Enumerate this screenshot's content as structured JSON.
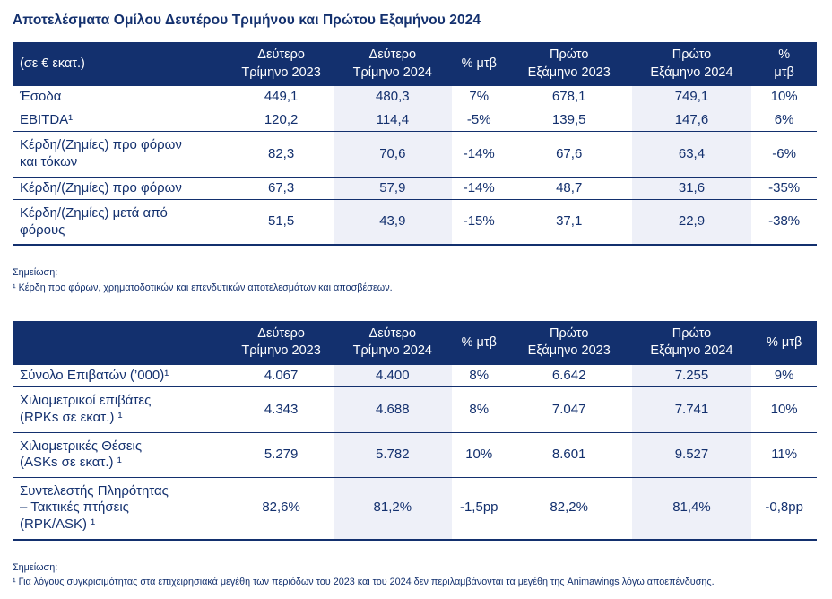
{
  "page": {
    "title": "Αποτελέσματα Ομίλου Δευτέρου Τριμήνου και Πρώτου Εξαμήνου 2024"
  },
  "colors": {
    "header_bg": "#13306E",
    "header_text": "#FFFFFF",
    "body_text": "#13306E",
    "column_highlight": "#EEF0F8",
    "row_line": "#13306E"
  },
  "tables": [
    {
      "name": "financial-results",
      "headers": [
        "(σε € εκατ.)",
        "Δεύτερο\nΤρίμηνο 2023",
        "Δεύτερο\nΤρίμηνο 2024",
        "% μτβ",
        "Πρώτο\nΕξάμηνο 2023",
        "Πρώτο\nΕξάμηνο 2024",
        "%\nμτβ"
      ],
      "rows": [
        {
          "label": "Έσοδα",
          "values": [
            "449,1",
            "480,3",
            "7%",
            "678,1",
            "749,1",
            "10%"
          ]
        },
        {
          "label": "EBITDA¹",
          "values": [
            "120,2",
            "114,4",
            "-5%",
            "139,5",
            "147,6",
            "6%"
          ]
        },
        {
          "label": "Κέρδη/(Ζημίες) προ φόρων\nκαι τόκων",
          "values": [
            "82,3",
            "70,6",
            "-14%",
            "67,6",
            "63,4",
            "-6%"
          ]
        },
        {
          "label": "Κέρδη/(Ζημίες) προ φόρων",
          "values": [
            "67,3",
            "57,9",
            "-14%",
            "48,7",
            "31,6",
            "-35%"
          ]
        },
        {
          "label": "Κέρδη/(Ζημίες) μετά από\nφόρους",
          "values": [
            "51,5",
            "43,9",
            "-15%",
            "37,1",
            "22,9",
            "-38%"
          ]
        }
      ],
      "note_label": "Σημείωση:",
      "note_text": "¹ Κέρδη προ φόρων, χρηματοδοτικών και επενδυτικών αποτελεσμάτων και αποσβέσεων."
    },
    {
      "name": "traffic-results",
      "headers": [
        "",
        "Δεύτερο\nΤρίμηνο 2023",
        "Δεύτερο\nΤρίμηνο 2024",
        "% μτβ",
        "Πρώτο\nΕξάμηνο 2023",
        "Πρώτο\nΕξάμηνο 2024",
        "% μτβ"
      ],
      "rows": [
        {
          "label": "Σύνολο Επιβατών (’000)¹",
          "values": [
            "4.067",
            "4.400",
            "8%",
            "6.642",
            "7.255",
            "9%"
          ]
        },
        {
          "label": "Χιλιομετρικοί επιβάτες\n(RPKs σε εκατ.) ¹",
          "values": [
            "4.343",
            "4.688",
            "8%",
            "7.047",
            "7.741",
            "10%"
          ]
        },
        {
          "label": "Χιλιομετρικές Θέσεις\n(ASKs σε εκατ.) ¹",
          "values": [
            "5.279",
            "5.782",
            "10%",
            "8.601",
            "9.527",
            "11%"
          ]
        },
        {
          "label": "Συντελεστής Πληρότητας\n– Τακτικές πτήσεις\n(RPK/ASK) ¹",
          "values": [
            "82,6%",
            "81,2%",
            "-1,5pp",
            "82,2%",
            "81,4%",
            "-0,8pp"
          ]
        }
      ],
      "note_label": "Σημείωση:",
      "note_text": "¹ Για λόγους συγκρισιμότητας στα επιχειρησιακά μεγέθη των περιόδων του 2023 και του 2024 δεν περιλαμβάνονται τα μεγέθη της Animawings λόγω αποεπένδυσης."
    }
  ]
}
